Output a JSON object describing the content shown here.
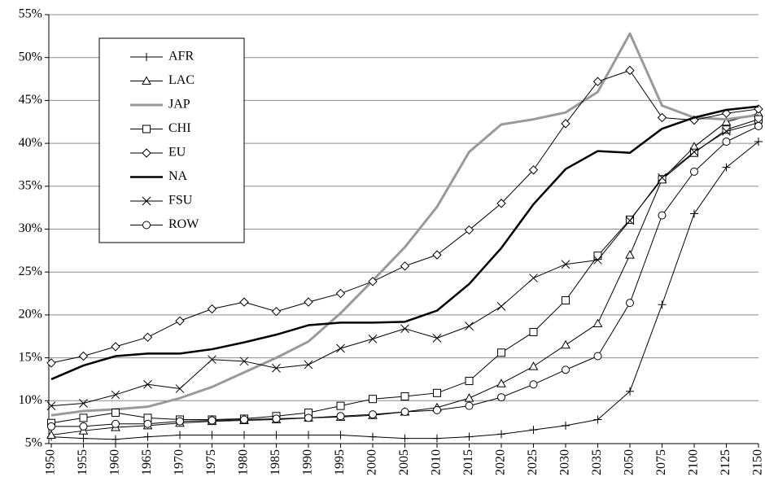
{
  "chart_data": {
    "type": "line",
    "categories": [
      "1950",
      "1955",
      "1960",
      "1965",
      "1970",
      "1975",
      "1980",
      "1985",
      "1990",
      "1995",
      "2000",
      "2005",
      "2010",
      "2015",
      "2020",
      "2025",
      "2030",
      "2035",
      "2050",
      "2075",
      "2100",
      "2125",
      "2150"
    ],
    "ylim": [
      5,
      55
    ],
    "yticks": [
      {
        "value": 5,
        "label": "5%"
      },
      {
        "value": 10,
        "label": "10%"
      },
      {
        "value": 15,
        "label": "15%"
      },
      {
        "value": 20,
        "label": "20%"
      },
      {
        "value": 25,
        "label": "25%"
      },
      {
        "value": 30,
        "label": "30%"
      },
      {
        "value": 35,
        "label": "35%"
      },
      {
        "value": 40,
        "label": "40%"
      },
      {
        "value": 45,
        "label": "45%"
      },
      {
        "value": 50,
        "label": "50%"
      },
      {
        "value": 55,
        "label": "55%"
      }
    ],
    "grid": true,
    "series": [
      {
        "name": "AFR",
        "color": "#000000",
        "marker": "plus",
        "width": 1,
        "values": [
          5.8,
          5.6,
          5.5,
          5.8,
          6,
          6,
          6,
          6,
          6,
          6,
          5.8,
          5.6,
          5.6,
          5.8,
          6.1,
          6.6,
          7.1,
          7.8,
          11.1,
          21.2,
          31.8,
          37.2,
          40.2
        ]
      },
      {
        "name": "LAC",
        "color": "#000000",
        "marker": "triangle",
        "width": 1,
        "values": [
          6,
          6.5,
          6.9,
          7.1,
          7.4,
          7.6,
          7.7,
          7.8,
          8,
          8.1,
          8.3,
          8.7,
          9.2,
          10.3,
          12,
          14,
          16.5,
          19,
          27,
          35.8,
          39.6,
          42.5,
          43.5
        ]
      },
      {
        "name": "JAP",
        "color": "#999999",
        "marker": "none",
        "width": 3,
        "values": [
          8.3,
          8.8,
          9,
          9.3,
          10.3,
          11.6,
          13.3,
          15,
          16.9,
          20.2,
          24,
          27.9,
          32.6,
          39,
          42.2,
          42.8,
          43.6,
          46,
          52.8,
          44.4,
          43,
          42.8,
          43.3
        ]
      },
      {
        "name": "CHI",
        "color": "#000000",
        "marker": "square",
        "width": 1,
        "values": [
          7.4,
          8,
          8.6,
          8,
          7.8,
          7.8,
          7.9,
          8.2,
          8.6,
          9.4,
          10.2,
          10.5,
          10.9,
          12.3,
          15.6,
          18,
          21.7,
          26.9,
          31.1,
          35.8,
          38.9,
          41.6,
          42.8
        ]
      },
      {
        "name": "EU",
        "color": "#000000",
        "marker": "diamond",
        "width": 1,
        "values": [
          14.4,
          15.2,
          16.3,
          17.4,
          19.3,
          20.7,
          21.5,
          20.4,
          21.5,
          22.5,
          23.9,
          25.7,
          27,
          29.9,
          33,
          36.9,
          42.3,
          47.2,
          48.5,
          43,
          42.7,
          43.5,
          44
        ]
      },
      {
        "name": "NA",
        "color": "#000000",
        "marker": "none",
        "width": 2.5,
        "values": [
          12.5,
          14.1,
          15.2,
          15.5,
          15.5,
          16,
          16.8,
          17.7,
          18.8,
          19.1,
          19.1,
          19.2,
          20.5,
          23.6,
          27.8,
          32.9,
          37,
          39.1,
          38.9,
          41.7,
          43,
          43.9,
          44.3
        ]
      },
      {
        "name": "FSU",
        "color": "#000000",
        "marker": "x",
        "width": 1,
        "values": [
          9.4,
          9.7,
          10.7,
          11.9,
          11.4,
          14.8,
          14.6,
          13.8,
          14.2,
          16.1,
          17.2,
          18.4,
          17.3,
          18.7,
          21,
          24.3,
          25.9,
          26.4,
          31,
          36,
          39,
          41.4,
          42.4
        ]
      },
      {
        "name": "ROW",
        "color": "#000000",
        "marker": "circle",
        "width": 1,
        "values": [
          7,
          7,
          7.3,
          7.3,
          7.6,
          7.7,
          7.8,
          7.9,
          8,
          8.2,
          8.4,
          8.7,
          8.9,
          9.4,
          10.4,
          11.9,
          13.6,
          15.2,
          21.4,
          31.6,
          36.7,
          40.2,
          42
        ]
      }
    ]
  }
}
